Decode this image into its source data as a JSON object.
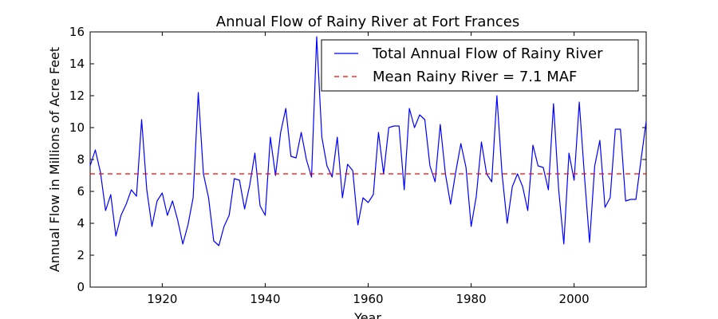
{
  "chart_data": {
    "type": "line",
    "title": "Annual Flow of Rainy River at Fort Frances",
    "xlabel": "Year",
    "ylabel": "Annual Flow in Millions of Acre Feet",
    "xlim": [
      1906,
      2014
    ],
    "ylim": [
      0,
      16
    ],
    "xticks": [
      1920,
      1940,
      1960,
      1980,
      2000
    ],
    "yticks": [
      0,
      2,
      4,
      6,
      8,
      10,
      12,
      14,
      16
    ],
    "legend_position": "top-right",
    "grid": false,
    "series": [
      {
        "name": "Total Annual Flow of Rainy River",
        "color": "#0000ff",
        "style": "solid",
        "x": [
          1906,
          1907,
          1908,
          1909,
          1910,
          1911,
          1912,
          1913,
          1914,
          1915,
          1916,
          1917,
          1918,
          1919,
          1920,
          1921,
          1922,
          1923,
          1924,
          1925,
          1926,
          1927,
          1928,
          1929,
          1930,
          1931,
          1932,
          1933,
          1934,
          1935,
          1936,
          1937,
          1938,
          1939,
          1940,
          1941,
          1942,
          1943,
          1944,
          1945,
          1946,
          1947,
          1948,
          1949,
          1950,
          1951,
          1952,
          1953,
          1954,
          1955,
          1956,
          1957,
          1958,
          1959,
          1960,
          1961,
          1962,
          1963,
          1964,
          1965,
          1966,
          1967,
          1968,
          1969,
          1970,
          1971,
          1972,
          1973,
          1974,
          1975,
          1976,
          1977,
          1978,
          1979,
          1980,
          1981,
          1982,
          1983,
          1984,
          1985,
          1986,
          1987,
          1988,
          1989,
          1990,
          1991,
          1992,
          1993,
          1994,
          1995,
          1996,
          1997,
          1998,
          1999,
          2000,
          2001,
          2002,
          2003,
          2004,
          2005,
          2006,
          2007,
          2008,
          2009,
          2010,
          2011,
          2012,
          2013,
          2014
        ],
        "values": [
          7.6,
          8.6,
          7.2,
          4.8,
          5.8,
          3.2,
          4.5,
          5.2,
          6.1,
          5.7,
          10.5,
          6.1,
          3.8,
          5.4,
          5.9,
          4.5,
          5.4,
          4.2,
          2.7,
          3.9,
          5.6,
          12.2,
          7.1,
          5.6,
          2.9,
          2.6,
          3.8,
          4.5,
          6.8,
          6.7,
          4.9,
          6.4,
          8.4,
          5.1,
          4.5,
          9.4,
          7.0,
          9.7,
          11.2,
          8.2,
          8.1,
          9.7,
          8.0,
          6.9,
          15.7,
          9.4,
          7.6,
          6.9,
          9.4,
          5.6,
          7.7,
          7.3,
          3.9,
          5.6,
          5.3,
          5.8,
          9.7,
          7.1,
          10.0,
          10.1,
          10.1,
          6.1,
          11.2,
          10.0,
          10.8,
          10.5,
          7.6,
          6.6,
          10.2,
          7.1,
          5.2,
          7.2,
          9.0,
          7.5,
          3.8,
          5.7,
          9.1,
          7.1,
          6.6,
          12.0,
          7.1,
          4.0,
          6.3,
          7.1,
          6.3,
          4.8,
          8.9,
          7.6,
          7.5,
          6.1,
          11.5,
          6.1,
          2.7,
          8.4,
          6.7,
          11.6,
          7.0,
          2.8,
          7.6,
          9.2,
          5.0,
          5.6,
          9.9,
          9.9,
          5.4,
          5.5,
          5.5,
          8.0,
          10.4
        ]
      },
      {
        "name": "Mean Rainy River = 7.1 MAF",
        "color": "#ff0000",
        "style": "dashed",
        "x": [
          1906,
          2014
        ],
        "values": [
          7.1,
          7.1
        ]
      }
    ]
  }
}
